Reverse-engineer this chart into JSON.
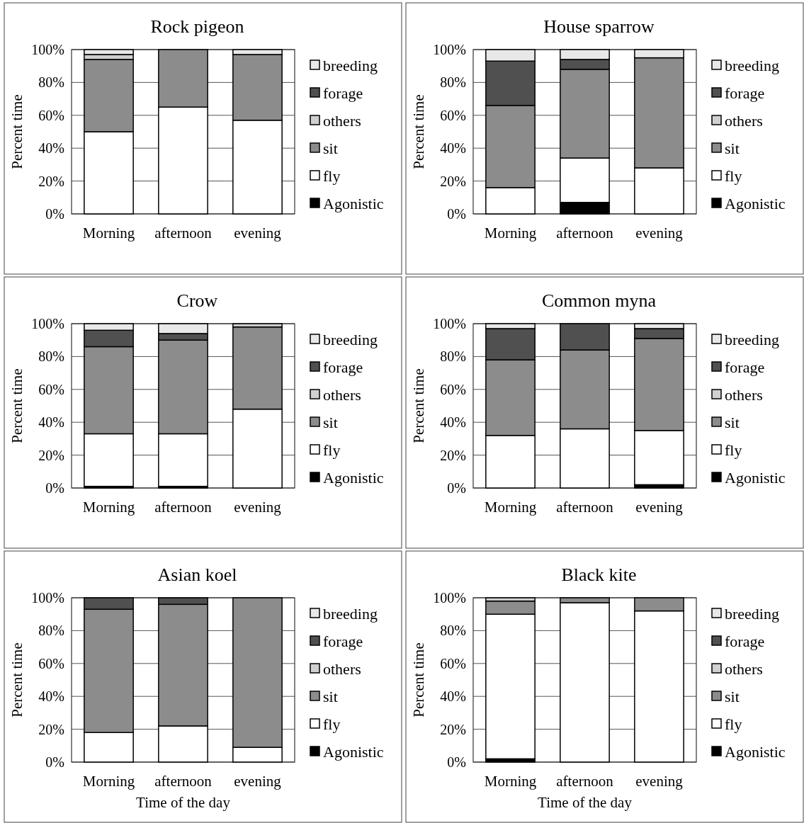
{
  "chart_data": [
    {
      "type": "bar",
      "stacked": true,
      "title": "Rock pigeon",
      "ylabel": "Percent time",
      "categories": [
        "Morning",
        "afternoon",
        "evening"
      ],
      "ylim": [
        0,
        100
      ],
      "yticks": [
        {
          "value": 0,
          "label": "0%"
        },
        {
          "value": 20,
          "label": "20%"
        },
        {
          "value": 40,
          "label": "40%"
        },
        {
          "value": 60,
          "label": "60%"
        },
        {
          "value": 80,
          "label": "80%"
        },
        {
          "value": 100,
          "label": "100%"
        }
      ],
      "grid": "y",
      "legend": "right",
      "series": [
        {
          "name": "Agonistic",
          "color": "#000000",
          "values": [
            0,
            0,
            0
          ]
        },
        {
          "name": "fly",
          "color": "#ffffff",
          "values": [
            50,
            65,
            57
          ]
        },
        {
          "name": "sit",
          "color": "#8c8c8c",
          "values": [
            44,
            35,
            40
          ]
        },
        {
          "name": "others",
          "color": "#d0d0d0",
          "values": [
            3,
            0,
            0
          ]
        },
        {
          "name": "forage",
          "color": "#505050",
          "values": [
            0,
            0,
            0
          ]
        },
        {
          "name": "breeding",
          "color": "#e8e8e8",
          "values": [
            3,
            0,
            3
          ]
        }
      ]
    },
    {
      "type": "bar",
      "stacked": true,
      "title": "House sparrow",
      "ylabel": "Percent time",
      "categories": [
        "Morning",
        "afternoon",
        "evening"
      ],
      "ylim": [
        0,
        100
      ],
      "yticks": [
        {
          "value": 0,
          "label": "0%"
        },
        {
          "value": 20,
          "label": "20%"
        },
        {
          "value": 40,
          "label": "40%"
        },
        {
          "value": 60,
          "label": "60%"
        },
        {
          "value": 80,
          "label": "80%"
        },
        {
          "value": 100,
          "label": "100%"
        }
      ],
      "grid": "y",
      "legend": "right",
      "series": [
        {
          "name": "Agonistic",
          "color": "#000000",
          "values": [
            0,
            7,
            0
          ]
        },
        {
          "name": "fly",
          "color": "#ffffff",
          "values": [
            16,
            27,
            28
          ]
        },
        {
          "name": "sit",
          "color": "#8c8c8c",
          "values": [
            50,
            54,
            67
          ]
        },
        {
          "name": "others",
          "color": "#d0d0d0",
          "values": [
            0,
            0,
            0
          ]
        },
        {
          "name": "forage",
          "color": "#505050",
          "values": [
            27,
            6,
            0
          ]
        },
        {
          "name": "breeding",
          "color": "#e8e8e8",
          "values": [
            7,
            6,
            5
          ]
        }
      ]
    },
    {
      "type": "bar",
      "stacked": true,
      "title": "Crow",
      "ylabel": "Percent time",
      "categories": [
        "Morning",
        "afternoon",
        "evening"
      ],
      "ylim": [
        0,
        100
      ],
      "yticks": [
        {
          "value": 0,
          "label": "0%"
        },
        {
          "value": 20,
          "label": "20%"
        },
        {
          "value": 40,
          "label": "40%"
        },
        {
          "value": 60,
          "label": "60%"
        },
        {
          "value": 80,
          "label": "80%"
        },
        {
          "value": 100,
          "label": "100%"
        }
      ],
      "grid": "y",
      "legend": "right",
      "series": [
        {
          "name": "Agonistic",
          "color": "#000000",
          "values": [
            1,
            1,
            0
          ]
        },
        {
          "name": "fly",
          "color": "#ffffff",
          "values": [
            32,
            32,
            48
          ]
        },
        {
          "name": "sit",
          "color": "#8c8c8c",
          "values": [
            53,
            57,
            50
          ]
        },
        {
          "name": "others",
          "color": "#d0d0d0",
          "values": [
            0,
            0,
            2
          ]
        },
        {
          "name": "forage",
          "color": "#505050",
          "values": [
            10,
            4,
            0
          ]
        },
        {
          "name": "breeding",
          "color": "#e8e8e8",
          "values": [
            4,
            6,
            0
          ]
        }
      ]
    },
    {
      "type": "bar",
      "stacked": true,
      "title": "Common myna",
      "ylabel": "Percent time",
      "categories": [
        "Morning",
        "afternoon",
        "evening"
      ],
      "ylim": [
        0,
        100
      ],
      "yticks": [
        {
          "value": 0,
          "label": "0%"
        },
        {
          "value": 20,
          "label": "20%"
        },
        {
          "value": 40,
          "label": "40%"
        },
        {
          "value": 60,
          "label": "60%"
        },
        {
          "value": 80,
          "label": "80%"
        },
        {
          "value": 100,
          "label": "100%"
        }
      ],
      "grid": "y",
      "legend": "right",
      "series": [
        {
          "name": "Agonistic",
          "color": "#000000",
          "values": [
            0,
            0,
            2
          ]
        },
        {
          "name": "fly",
          "color": "#ffffff",
          "values": [
            32,
            36,
            33
          ]
        },
        {
          "name": "sit",
          "color": "#8c8c8c",
          "values": [
            46,
            48,
            56
          ]
        },
        {
          "name": "others",
          "color": "#d0d0d0",
          "values": [
            0,
            0,
            0
          ]
        },
        {
          "name": "forage",
          "color": "#505050",
          "values": [
            19,
            16,
            6
          ]
        },
        {
          "name": "breeding",
          "color": "#e8e8e8",
          "values": [
            3,
            0,
            3
          ]
        }
      ]
    },
    {
      "type": "bar",
      "stacked": true,
      "title": "Asian koel",
      "xlabel": "Time of the day",
      "ylabel": "Percent time",
      "categories": [
        "Morning",
        "afternoon",
        "evening"
      ],
      "ylim": [
        0,
        100
      ],
      "yticks": [
        {
          "value": 0,
          "label": "0%"
        },
        {
          "value": 20,
          "label": "20%"
        },
        {
          "value": 40,
          "label": "40%"
        },
        {
          "value": 60,
          "label": "60%"
        },
        {
          "value": 80,
          "label": "80%"
        },
        {
          "value": 100,
          "label": "100%"
        }
      ],
      "grid": "y",
      "legend": "right",
      "series": [
        {
          "name": "Agonistic",
          "color": "#000000",
          "values": [
            0,
            0,
            0
          ]
        },
        {
          "name": "fly",
          "color": "#ffffff",
          "values": [
            18,
            22,
            9
          ]
        },
        {
          "name": "sit",
          "color": "#8c8c8c",
          "values": [
            75,
            74,
            91
          ]
        },
        {
          "name": "others",
          "color": "#d0d0d0",
          "values": [
            0,
            0,
            0
          ]
        },
        {
          "name": "forage",
          "color": "#505050",
          "values": [
            7,
            4,
            0
          ]
        },
        {
          "name": "breeding",
          "color": "#e8e8e8",
          "values": [
            0,
            0,
            0
          ]
        }
      ]
    },
    {
      "type": "bar",
      "stacked": true,
      "title": "Black kite",
      "xlabel": "Time of the day",
      "ylabel": "Percent time",
      "categories": [
        "Morning",
        "afternoon",
        "evening"
      ],
      "ylim": [
        0,
        100
      ],
      "yticks": [
        {
          "value": 0,
          "label": "0%"
        },
        {
          "value": 20,
          "label": "20%"
        },
        {
          "value": 40,
          "label": "40%"
        },
        {
          "value": 60,
          "label": "60%"
        },
        {
          "value": 80,
          "label": "80%"
        },
        {
          "value": 100,
          "label": "100%"
        }
      ],
      "grid": "y",
      "legend": "right",
      "series": [
        {
          "name": "Agonistic",
          "color": "#000000",
          "values": [
            2,
            0,
            0
          ]
        },
        {
          "name": "fly",
          "color": "#ffffff",
          "values": [
            88,
            97,
            92
          ]
        },
        {
          "name": "sit",
          "color": "#8c8c8c",
          "values": [
            8,
            3,
            8
          ]
        },
        {
          "name": "others",
          "color": "#d0d0d0",
          "values": [
            2,
            0,
            0
          ]
        },
        {
          "name": "forage",
          "color": "#505050",
          "values": [
            0,
            0,
            0
          ]
        },
        {
          "name": "breeding",
          "color": "#e8e8e8",
          "values": [
            0,
            0,
            0
          ]
        }
      ]
    }
  ]
}
